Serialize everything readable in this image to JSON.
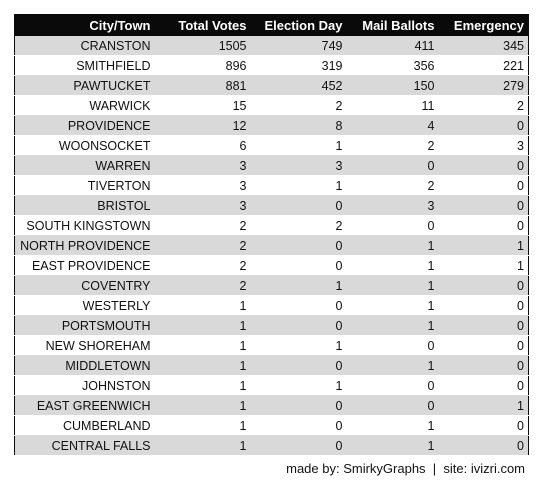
{
  "table": {
    "columns": [
      "City/Town",
      "Total Votes",
      "Election Day",
      "Mail Ballots",
      "Emergency"
    ],
    "rows": [
      [
        "CRANSTON",
        "1505",
        "749",
        "411",
        "345"
      ],
      [
        "SMITHFIELD",
        "896",
        "319",
        "356",
        "221"
      ],
      [
        "PAWTUCKET",
        "881",
        "452",
        "150",
        "279"
      ],
      [
        "WARWICK",
        "15",
        "2",
        "11",
        "2"
      ],
      [
        "PROVIDENCE",
        "12",
        "8",
        "4",
        "0"
      ],
      [
        "WOONSOCKET",
        "6",
        "1",
        "2",
        "3"
      ],
      [
        "WARREN",
        "3",
        "3",
        "0",
        "0"
      ],
      [
        "TIVERTON",
        "3",
        "1",
        "2",
        "0"
      ],
      [
        "BRISTOL",
        "3",
        "0",
        "3",
        "0"
      ],
      [
        "SOUTH KINGSTOWN",
        "2",
        "2",
        "0",
        "0"
      ],
      [
        "NORTH PROVIDENCE",
        "2",
        "0",
        "1",
        "1"
      ],
      [
        "EAST PROVIDENCE",
        "2",
        "0",
        "1",
        "1"
      ],
      [
        "COVENTRY",
        "2",
        "1",
        "1",
        "0"
      ],
      [
        "WESTERLY",
        "1",
        "0",
        "1",
        "0"
      ],
      [
        "PORTSMOUTH",
        "1",
        "0",
        "1",
        "0"
      ],
      [
        "NEW SHOREHAM",
        "1",
        "1",
        "0",
        "0"
      ],
      [
        "MIDDLETOWN",
        "1",
        "0",
        "1",
        "0"
      ],
      [
        "JOHNSTON",
        "1",
        "1",
        "0",
        "0"
      ],
      [
        "EAST GREENWICH",
        "1",
        "0",
        "0",
        "1"
      ],
      [
        "CUMBERLAND",
        "1",
        "0",
        "1",
        "0"
      ],
      [
        "CENTRAL FALLS",
        "1",
        "0",
        "1",
        "0"
      ]
    ]
  },
  "footer": {
    "credit": "made by: SmirkyGraphs  |  site: ivizri.com"
  },
  "colors": {
    "header_bg": "#0a0a0a",
    "header_text": "#ffffff",
    "stripe": "#d9d9d9"
  }
}
